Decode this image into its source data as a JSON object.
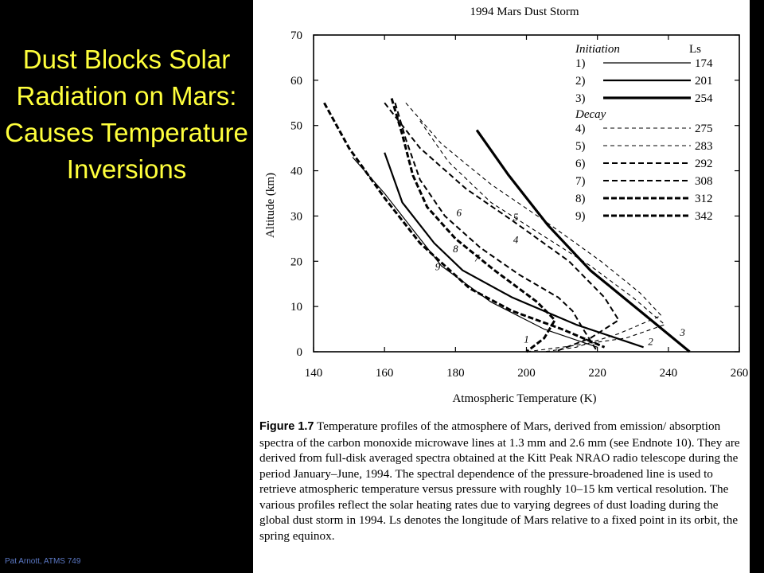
{
  "slide": {
    "title": "Dust Blocks Solar Radiation on Mars: Causes Temperature Inversions",
    "footer": "Pat Arnott, ATMS 749",
    "title_color": "#ffff3c",
    "background": "#000000"
  },
  "caption": {
    "figure_label": "Figure 1.7",
    "text": "Temperature profiles of the atmosphere of Mars, derived from emission/ absorption spectra of the carbon monoxide microwave lines at 1.3 mm and 2.6 mm (see Endnote 10). They are derived from full-disk averaged spectra obtained at the Kitt Peak NRAO radio telescope during the period January–June, 1994. The spectral dependence of the pressure-broadened line is used to retrieve atmospheric temperature versus pressure with roughly 10–15 km vertical resolution. The various profiles reflect the solar heating rates due to varying degrees of dust loading during the global dust storm in 1994. Ls denotes the longitude of Mars relative to a fixed point in its orbit, the spring equinox."
  },
  "chart_data": {
    "type": "line",
    "title": "1994 Mars Dust Storm",
    "xlabel": "Atmospheric Temperature (K)",
    "ylabel": "Altitude (km)",
    "xlim": [
      140,
      260
    ],
    "ylim": [
      0,
      70
    ],
    "xticks": [
      140,
      160,
      180,
      200,
      220,
      240,
      260
    ],
    "yticks": [
      0,
      10,
      20,
      30,
      40,
      50,
      60,
      70
    ],
    "grid": false,
    "legend_position": "top-right",
    "legend_groups": [
      "Initiation",
      "Decay"
    ],
    "legend_ls_header": "Ls",
    "series": [
      {
        "name": "1)",
        "ls": "174",
        "group": "Initiation",
        "style": "solid-thin",
        "points": [
          [
            151,
            43
          ],
          [
            160,
            35
          ],
          [
            168,
            27
          ],
          [
            176,
            19
          ],
          [
            190,
            11
          ],
          [
            205,
            5
          ],
          [
            220,
            1
          ]
        ]
      },
      {
        "name": "2)",
        "ls": "201",
        "group": "Initiation",
        "style": "solid-medium",
        "points": [
          [
            160,
            44
          ],
          [
            165,
            33
          ],
          [
            174,
            24
          ],
          [
            182,
            18
          ],
          [
            196,
            12
          ],
          [
            214,
            6
          ],
          [
            233,
            1
          ]
        ]
      },
      {
        "name": "3)",
        "ls": "254",
        "group": "Initiation",
        "style": "solid-thick",
        "points": [
          [
            186,
            49
          ],
          [
            195,
            39
          ],
          [
            206,
            28
          ],
          [
            218,
            18
          ],
          [
            232,
            9
          ],
          [
            246,
            0
          ]
        ]
      },
      {
        "name": "4)",
        "ls": "275",
        "group": "Decay",
        "style": "dash-thin",
        "points": [
          [
            170,
            51
          ],
          [
            178,
            42
          ],
          [
            190,
            33
          ],
          [
            204,
            26
          ],
          [
            218,
            19
          ],
          [
            230,
            12
          ],
          [
            239,
            6
          ],
          [
            228,
            3
          ],
          [
            210,
            1
          ],
          [
            200,
            0
          ]
        ]
      },
      {
        "name": "5)",
        "ls": "283",
        "group": "Decay",
        "style": "dash-thin",
        "points": [
          [
            166,
            55
          ],
          [
            176,
            46
          ],
          [
            190,
            37
          ],
          [
            205,
            29
          ],
          [
            221,
            20
          ],
          [
            232,
            13
          ],
          [
            238,
            8
          ],
          [
            226,
            4
          ],
          [
            214,
            1
          ],
          [
            205,
            0
          ]
        ]
      },
      {
        "name": "6)",
        "ls": "292",
        "group": "Decay",
        "style": "dash-medium",
        "points": [
          [
            160,
            55
          ],
          [
            170,
            45
          ],
          [
            183,
            36
          ],
          [
            196,
            29
          ],
          [
            212,
            20
          ],
          [
            222,
            12
          ],
          [
            226,
            7
          ],
          [
            218,
            3
          ],
          [
            208,
            0
          ]
        ]
      },
      {
        "name": "7)",
        "ls": "308",
        "group": "Decay",
        "style": "dash-medium",
        "points": [
          [
            163,
            55
          ],
          [
            166,
            47
          ],
          [
            170,
            38
          ],
          [
            177,
            30
          ],
          [
            187,
            23
          ],
          [
            198,
            17
          ],
          [
            209,
            12
          ],
          [
            213,
            9
          ],
          [
            216,
            5
          ],
          [
            220,
            0
          ]
        ]
      },
      {
        "name": "8)",
        "ls": "312",
        "group": "Decay",
        "style": "dash-thick",
        "points": [
          [
            162,
            56
          ],
          [
            165,
            48
          ],
          [
            168,
            39
          ],
          [
            172,
            32
          ],
          [
            180,
            25
          ],
          [
            191,
            18
          ],
          [
            203,
            11
          ],
          [
            208,
            7
          ],
          [
            205,
            3
          ],
          [
            200,
            0
          ]
        ]
      },
      {
        "name": "9)",
        "ls": "342",
        "group": "Decay",
        "style": "dash-thick",
        "points": [
          [
            143,
            55
          ],
          [
            150,
            45
          ],
          [
            160,
            34
          ],
          [
            170,
            24
          ],
          [
            184,
            14
          ],
          [
            196,
            9
          ],
          [
            210,
            5
          ],
          [
            222,
            1
          ]
        ]
      }
    ],
    "curve_labels": [
      {
        "text": "1",
        "x": 200,
        "y": 2
      },
      {
        "text": "2",
        "x": 235,
        "y": 1.5
      },
      {
        "text": "3",
        "x": 244,
        "y": 3.5
      },
      {
        "text": "4",
        "x": 197,
        "y": 24
      },
      {
        "text": "5",
        "x": 197,
        "y": 29
      },
      {
        "text": "6",
        "x": 181,
        "y": 30
      },
      {
        "text": "7",
        "x": 186,
        "y": 20
      },
      {
        "text": "8",
        "x": 180,
        "y": 22
      },
      {
        "text": "9",
        "x": 175,
        "y": 18
      }
    ]
  }
}
